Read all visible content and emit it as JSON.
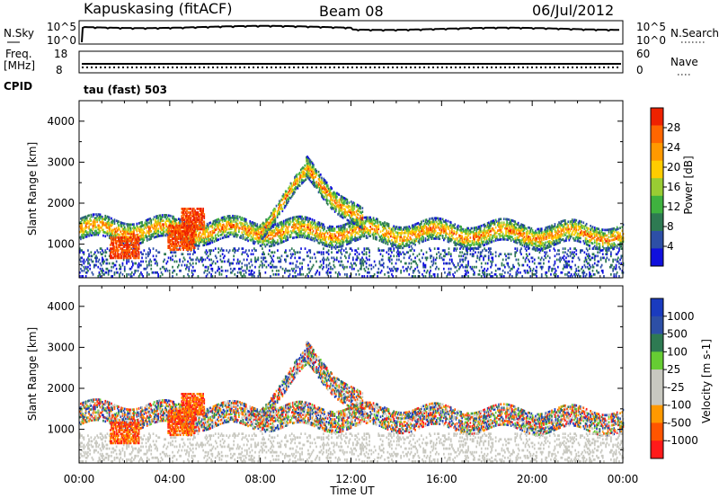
{
  "header": {
    "station": "Kapuskasing (fitACF)",
    "beam": "Beam 08",
    "date": "06/Jul/2012"
  },
  "panels": {
    "nsky_label": "N.Sky",
    "nsearch_label": "N.Search",
    "nsky_ticks": [
      "10^5",
      "10^0"
    ],
    "nsearch_ticks": [
      "10^5",
      "10^0"
    ],
    "freq_label_1": "Freq.",
    "freq_label_2": "[MHz]",
    "freq_ticks": [
      "18",
      "8"
    ],
    "nave_label": "Nave",
    "nave_ticks": [
      "60",
      "0"
    ],
    "cpid_label": "CPID",
    "cpid_text": "tau (fast) 503"
  },
  "colors": {
    "power": [
      "#1010dd",
      "#2d4fa6",
      "#2e7a52",
      "#3fb23f",
      "#99cc33",
      "#ffcc00",
      "#ff9900",
      "#ff6600",
      "#ee2200"
    ],
    "velocity": [
      "#ff1a1a",
      "#ff5500",
      "#ff9900",
      "#c8c8c0",
      "#c8c8c0",
      "#66cc33",
      "#2e7a52",
      "#2d4fa6",
      "#1a3bbf"
    ],
    "ground": "#c8c8c0"
  },
  "chart_data": [
    {
      "type": "heatmap",
      "name": "power",
      "xlabel": "",
      "ylabel": "Slant Range [km]",
      "ylim": [
        180,
        4500
      ],
      "xlim": [
        0,
        24
      ],
      "y_ticks": [
        "4000",
        "3000",
        "2000",
        "1000"
      ],
      "colorbar_label": "Power [dB]",
      "colorbar_ticks": [
        "28",
        "24",
        "20",
        "16",
        "12",
        "8",
        "4"
      ],
      "colorbar_range": [
        0,
        32
      ],
      "bands": [
        {
          "t0": 0.0,
          "t1": 24.0,
          "range_start": 1350,
          "range_end": 1200,
          "width": 250
        },
        {
          "t0": 8.0,
          "t1": 10.2,
          "range_start": 1400,
          "range_end": 2800,
          "width": 200
        },
        {
          "t0": 10.0,
          "t1": 12.5,
          "range_start": 2800,
          "range_end": 1500,
          "width": 250
        }
      ]
    },
    {
      "type": "heatmap",
      "name": "velocity",
      "xlabel": "Time UT",
      "ylabel": "Slant Range [km]",
      "ylim": [
        180,
        4500
      ],
      "xlim": [
        0,
        24
      ],
      "y_ticks": [
        "4000",
        "3000",
        "2000",
        "1000"
      ],
      "x_ticks": [
        "00:00",
        "04:00",
        "08:00",
        "12:00",
        "16:00",
        "20:00",
        "00:00"
      ],
      "colorbar_label": "Velocity [m s-1]",
      "colorbar_ticks": [
        "1000",
        "500",
        "100",
        "25",
        "-25",
        "-100",
        "-500",
        "-1000"
      ]
    }
  ]
}
